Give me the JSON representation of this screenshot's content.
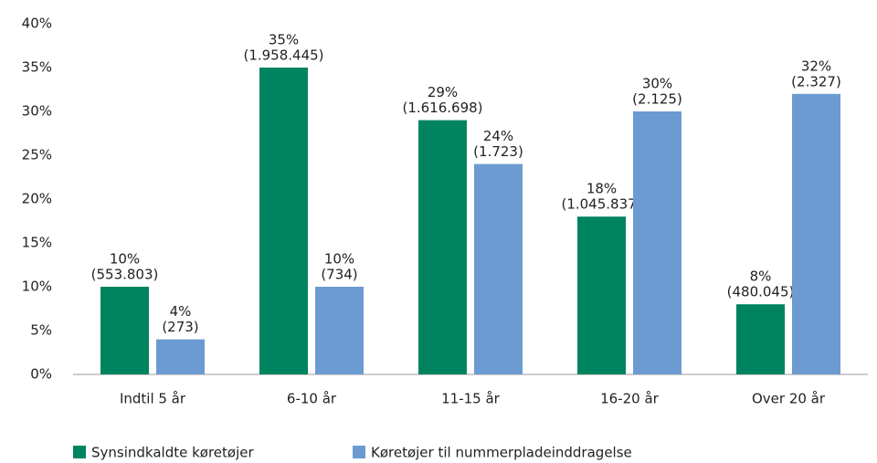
{
  "chart_data": {
    "type": "bar",
    "categories": [
      "Indtil 5 år",
      "6-10 år",
      "11-15 år",
      "16-20 år",
      "Over 20 år"
    ],
    "series": [
      {
        "name": "Synsindkaldte køretøjer",
        "color": "#00845f",
        "values": [
          10,
          35,
          29,
          18,
          8
        ],
        "value_labels": [
          "10%",
          "35%",
          "29%",
          "18%",
          "8%"
        ],
        "count_labels": [
          "(553.803)",
          "(1.958.445)",
          "(1.616.698)",
          "(1.045.837)",
          "(480.045)"
        ]
      },
      {
        "name": "Køretøjer til nummerpladeinddragelse",
        "color": "#6b9bd1",
        "values": [
          4,
          10,
          24,
          30,
          32
        ],
        "value_labels": [
          "4%",
          "10%",
          "24%",
          "30%",
          "32%"
        ],
        "count_labels": [
          "(273)",
          "(734)",
          "(1.723)",
          "(2.125)",
          "(2.327)"
        ]
      }
    ],
    "ylim": [
      0,
      40
    ],
    "yticks": [
      {
        "value": 0,
        "label": "0%"
      },
      {
        "value": 5,
        "label": "5%"
      },
      {
        "value": 10,
        "label": "10%"
      },
      {
        "value": 15,
        "label": "15%"
      },
      {
        "value": 20,
        "label": "20%"
      },
      {
        "value": 25,
        "label": "25%"
      },
      {
        "value": 30,
        "label": "30%"
      },
      {
        "value": 35,
        "label": "35%"
      },
      {
        "value": 40,
        "label": "40%"
      }
    ],
    "grid": false,
    "legend": "bottom"
  }
}
